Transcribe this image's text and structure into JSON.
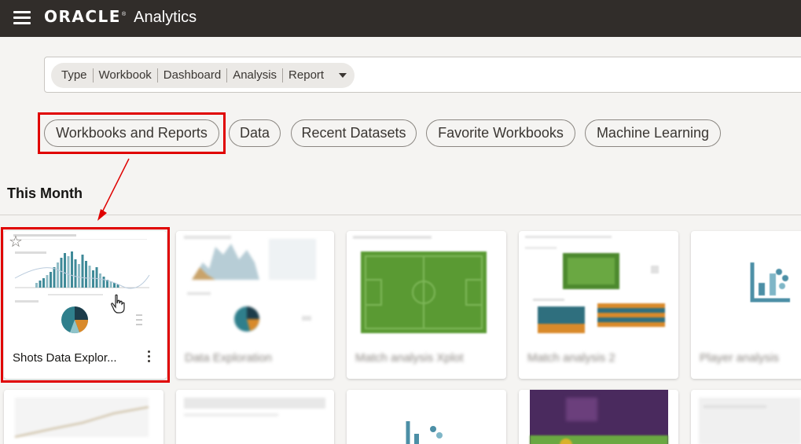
{
  "header": {
    "brand": "ORACLE",
    "brand_reg": "®",
    "product": "Analytics"
  },
  "search": {
    "type_label": "Type",
    "filters": [
      "Workbook",
      "Dashboard",
      "Analysis",
      "Report"
    ]
  },
  "tabs": [
    {
      "label": "Workbooks and Reports"
    },
    {
      "label": "Data"
    },
    {
      "label": "Recent Datasets"
    },
    {
      "label": "Favorite Workbooks"
    },
    {
      "label": "Machine Learning"
    }
  ],
  "section": {
    "title": "This Month"
  },
  "cards": [
    {
      "title": "Shots Data Explor..."
    },
    {
      "title": "Data Exploration"
    },
    {
      "title": "Match analysis Xplot"
    },
    {
      "title": "Match analysis 2"
    },
    {
      "title": "Player analysis"
    }
  ],
  "colors": {
    "topbar": "#312d2a",
    "highlight": "#e00000",
    "teal": "#2f7f8c",
    "pitch_green": "#5a9a33"
  }
}
